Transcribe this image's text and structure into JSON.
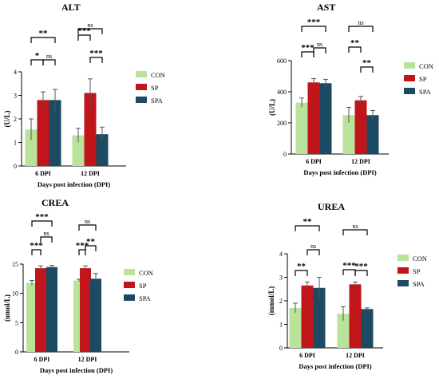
{
  "figure": {
    "colors": {
      "CON": "#b9e39a",
      "SP": "#c0151b",
      "SPA": "#1d4a63"
    }
  },
  "chart_data": [
    {
      "type": "bar",
      "title": "ALT",
      "ylabel": "(U/L)",
      "xlabel": "Days post infection (DPI)",
      "ylim": [
        0,
        4
      ],
      "yticks": [
        0,
        1,
        2,
        3,
        4
      ],
      "categories": [
        "6 DPI",
        "12 DPI"
      ],
      "series": [
        {
          "name": "CON",
          "values": [
            1.55,
            1.3
          ],
          "errors": [
            0.45,
            0.3
          ]
        },
        {
          "name": "SP",
          "values": [
            2.8,
            3.1
          ],
          "errors": [
            0.35,
            0.6
          ]
        },
        {
          "name": "SPA",
          "values": [
            2.8,
            1.35
          ],
          "errors": [
            0.45,
            0.3
          ]
        }
      ],
      "legend": [
        "CON",
        "SP",
        "SPA"
      ],
      "legend_position": "right",
      "annotations": [
        {
          "group": "6 DPI",
          "pair": [
            "CON",
            "SP"
          ],
          "label": "*"
        },
        {
          "group": "6 DPI",
          "pair": [
            "SP",
            "SPA"
          ],
          "label": "ns"
        },
        {
          "group": "6 DPI",
          "pair": [
            "CON",
            "SPA"
          ],
          "label": "**"
        },
        {
          "group": "12 DPI",
          "pair": [
            "CON",
            "SP"
          ],
          "label": "***"
        },
        {
          "group": "12 DPI",
          "pair": [
            "SP",
            "SPA"
          ],
          "label": "***"
        },
        {
          "group": "12 DPI",
          "pair": [
            "CON",
            "SPA"
          ],
          "label": "ns"
        }
      ]
    },
    {
      "type": "bar",
      "title": "AST",
      "ylabel": "(U/L)",
      "xlabel": "Days post infection (DPI)",
      "ylim": [
        0,
        600
      ],
      "yticks": [
        0,
        200,
        400,
        600
      ],
      "categories": [
        "6 DPI",
        "12 DPI"
      ],
      "series": [
        {
          "name": "CON",
          "values": [
            330,
            250
          ],
          "errors": [
            30,
            50
          ]
        },
        {
          "name": "SP",
          "values": [
            460,
            345
          ],
          "errors": [
            25,
            25
          ]
        },
        {
          "name": "SPA",
          "values": [
            455,
            250
          ],
          "errors": [
            25,
            30
          ]
        }
      ],
      "legend": [
        "CON",
        "SP",
        "SPA"
      ],
      "legend_position": "right",
      "annotations": [
        {
          "group": "6 DPI",
          "pair": [
            "CON",
            "SP"
          ],
          "label": "***"
        },
        {
          "group": "6 DPI",
          "pair": [
            "SP",
            "SPA"
          ],
          "label": "ns"
        },
        {
          "group": "6 DPI",
          "pair": [
            "CON",
            "SPA"
          ],
          "label": "***"
        },
        {
          "group": "12 DPI",
          "pair": [
            "CON",
            "SP"
          ],
          "label": "**"
        },
        {
          "group": "12 DPI",
          "pair": [
            "SP",
            "SPA"
          ],
          "label": "**"
        },
        {
          "group": "12 DPI",
          "pair": [
            "CON",
            "SPA"
          ],
          "label": "ns"
        }
      ]
    },
    {
      "type": "bar",
      "title": "CREA",
      "ylabel": "(umol/L)",
      "xlabel": "Days post infection (DPI)",
      "ylim": [
        0,
        15
      ],
      "yticks": [
        0,
        5,
        10,
        15
      ],
      "categories": [
        "6 DPI",
        "12 DPI"
      ],
      "series": [
        {
          "name": "CON",
          "values": [
            11.8,
            12.2
          ],
          "errors": [
            0.4,
            0.2
          ]
        },
        {
          "name": "SP",
          "values": [
            14.3,
            14.3
          ],
          "errors": [
            0.4,
            0.4
          ]
        },
        {
          "name": "SPA",
          "values": [
            14.5,
            12.5
          ],
          "errors": [
            0.3,
            0.9
          ]
        }
      ],
      "legend": [
        "CON",
        "SP",
        "SPA"
      ],
      "legend_position": "right",
      "annotations": [
        {
          "group": "6 DPI",
          "pair": [
            "CON",
            "SP"
          ],
          "label": "***"
        },
        {
          "group": "6 DPI",
          "pair": [
            "SP",
            "SPA"
          ],
          "label": "ns"
        },
        {
          "group": "6 DPI",
          "pair": [
            "CON",
            "SPA"
          ],
          "label": "***"
        },
        {
          "group": "12 DPI",
          "pair": [
            "CON",
            "SP"
          ],
          "label": "***"
        },
        {
          "group": "12 DPI",
          "pair": [
            "SP",
            "SPA"
          ],
          "label": "**"
        },
        {
          "group": "12 DPI",
          "pair": [
            "CON",
            "SPA"
          ],
          "label": "ns"
        }
      ]
    },
    {
      "type": "bar",
      "title": "UREA",
      "ylabel": "(mmol/L)",
      "xlabel": "Days post infection (DPI)",
      "ylim": [
        0,
        4
      ],
      "yticks": [
        0,
        1,
        2,
        3,
        4
      ],
      "categories": [
        "6 DPI",
        "12 DPI"
      ],
      "series": [
        {
          "name": "CON",
          "values": [
            1.7,
            1.45
          ],
          "errors": [
            0.2,
            0.3
          ]
        },
        {
          "name": "SP",
          "values": [
            2.65,
            2.7
          ],
          "errors": [
            0.15,
            0.1
          ]
        },
        {
          "name": "SPA",
          "values": [
            2.55,
            1.65
          ],
          "errors": [
            0.45,
            0.05
          ]
        }
      ],
      "legend": [
        "CON",
        "SP",
        "SPA"
      ],
      "legend_position": "right",
      "annotations": [
        {
          "group": "6 DPI",
          "pair": [
            "CON",
            "SP"
          ],
          "label": "**"
        },
        {
          "group": "6 DPI",
          "pair": [
            "SP",
            "SPA"
          ],
          "label": "ns"
        },
        {
          "group": "6 DPI",
          "pair": [
            "CON",
            "SPA"
          ],
          "label": "**"
        },
        {
          "group": "12 DPI",
          "pair": [
            "CON",
            "SP"
          ],
          "label": "***"
        },
        {
          "group": "12 DPI",
          "pair": [
            "SP",
            "SPA"
          ],
          "label": "***"
        },
        {
          "group": "12 DPI",
          "pair": [
            "CON",
            "SPA"
          ],
          "label": "ns"
        }
      ]
    }
  ]
}
